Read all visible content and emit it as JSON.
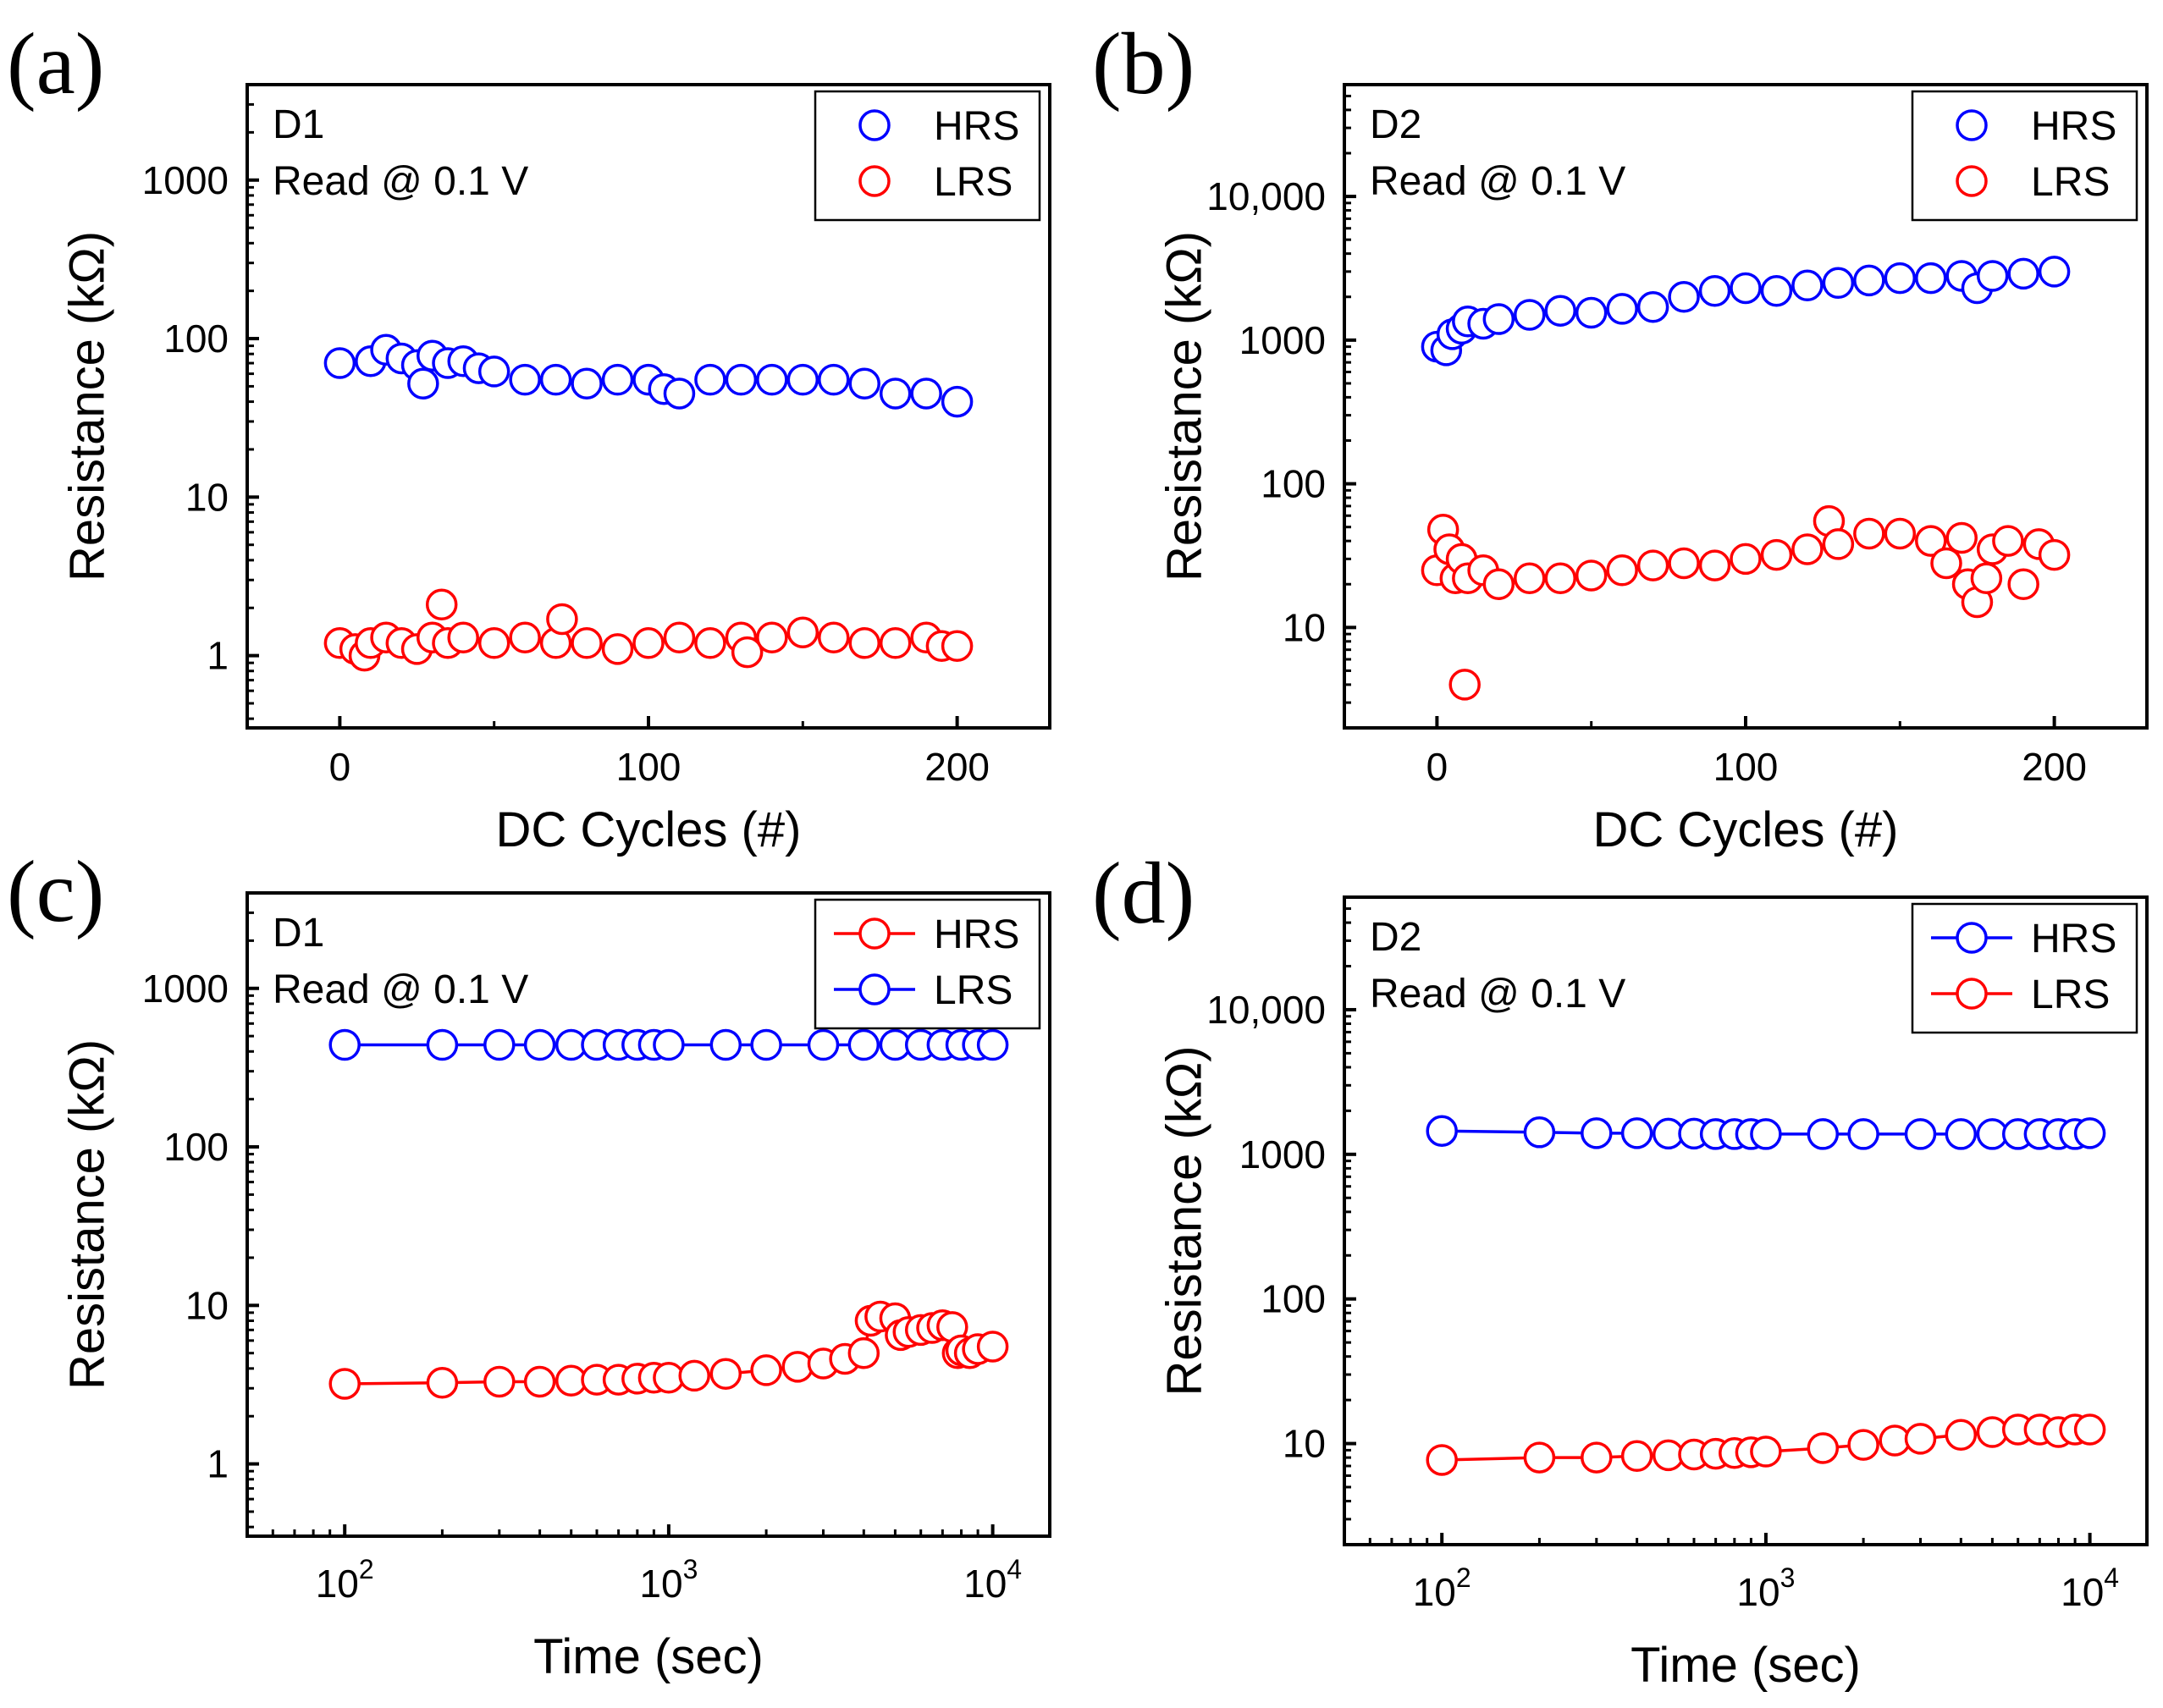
{
  "colors": {
    "blue": "#0000ff",
    "red": "#ff0000",
    "axis": "#000000"
  },
  "chart_data": [
    {
      "id": "a",
      "type": "scatter",
      "panel_label": "(a)",
      "annotation_line1": "D1",
      "annotation_line2": "Read @ 0.1 V",
      "xlabel": "DC Cycles (#)",
      "ylabel": "Resistance (kΩ)",
      "xscale": "linear",
      "yscale": "log",
      "xlim": [
        -30,
        230
      ],
      "ylim": [
        0.35,
        4000
      ],
      "xticks": [
        0,
        100,
        200
      ],
      "xtick_labels": [
        "0",
        "100",
        "200"
      ],
      "yticks": [
        1,
        10,
        100,
        1000
      ],
      "ytick_labels": [
        "1",
        "10",
        "100",
        "1000"
      ],
      "legend_position": "top-right",
      "legend_style": "markers",
      "series": [
        {
          "name": "HRS",
          "color": "blue",
          "x": [
            0,
            10,
            15,
            20,
            25,
            27,
            30,
            35,
            40,
            45,
            50,
            60,
            70,
            80,
            90,
            100,
            105,
            110,
            120,
            130,
            140,
            150,
            160,
            170,
            180,
            190,
            200
          ],
          "y": [
            70,
            72,
            85,
            75,
            68,
            52,
            78,
            70,
            72,
            65,
            62,
            55,
            55,
            52,
            55,
            55,
            48,
            45,
            55,
            55,
            55,
            55,
            55,
            52,
            45,
            45,
            40
          ]
        },
        {
          "name": "LRS",
          "color": "red",
          "x": [
            0,
            5,
            8,
            10,
            15,
            20,
            25,
            30,
            33,
            35,
            40,
            50,
            60,
            70,
            72,
            80,
            90,
            100,
            110,
            120,
            130,
            132,
            140,
            150,
            160,
            170,
            180,
            190,
            195,
            200
          ],
          "y": [
            1.2,
            1.1,
            1.0,
            1.2,
            1.3,
            1.2,
            1.1,
            1.3,
            2.1,
            1.2,
            1.3,
            1.2,
            1.3,
            1.2,
            1.7,
            1.2,
            1.1,
            1.2,
            1.3,
            1.2,
            1.3,
            1.05,
            1.3,
            1.4,
            1.3,
            1.2,
            1.2,
            1.3,
            1.15,
            1.15
          ]
        }
      ]
    },
    {
      "id": "b",
      "type": "scatter",
      "panel_label": "(b)",
      "annotation_line1": "D2",
      "annotation_line2": "Read @ 0.1 V",
      "xlabel": "DC Cycles (#)",
      "ylabel": "Resistance (kΩ)",
      "xscale": "linear",
      "yscale": "log",
      "xlim": [
        -30,
        230
      ],
      "ylim": [
        2,
        60000
      ],
      "xticks": [
        0,
        100,
        200
      ],
      "xtick_labels": [
        "0",
        "100",
        "200"
      ],
      "yticks": [
        10,
        100,
        1000,
        10000
      ],
      "ytick_labels": [
        "10",
        "100",
        "1000",
        "10,000"
      ],
      "legend_position": "top-right",
      "legend_style": "markers",
      "series": [
        {
          "name": "HRS",
          "color": "blue",
          "x": [
            0,
            3,
            5,
            8,
            10,
            15,
            20,
            30,
            40,
            50,
            60,
            70,
            80,
            90,
            100,
            110,
            120,
            130,
            140,
            150,
            160,
            170,
            175,
            180,
            190,
            200
          ],
          "y": [
            900,
            850,
            1100,
            1200,
            1350,
            1300,
            1400,
            1500,
            1600,
            1550,
            1650,
            1700,
            2000,
            2200,
            2300,
            2200,
            2400,
            2500,
            2600,
            2700,
            2700,
            2800,
            2300,
            2800,
            2900,
            3000
          ]
        },
        {
          "name": "LRS",
          "color": "red",
          "x": [
            0,
            2,
            4,
            6,
            8,
            9,
            10,
            15,
            20,
            30,
            40,
            50,
            60,
            70,
            80,
            90,
            100,
            110,
            120,
            127,
            130,
            140,
            150,
            160,
            165,
            170,
            172,
            175,
            178,
            180,
            185,
            190,
            195,
            200
          ],
          "y": [
            25,
            48,
            35,
            22,
            30,
            4,
            22,
            25,
            20,
            22,
            22,
            23,
            25,
            27,
            28,
            27,
            30,
            32,
            35,
            55,
            38,
            45,
            45,
            40,
            28,
            42,
            20,
            15,
            22,
            35,
            40,
            20,
            38,
            32
          ]
        }
      ]
    },
    {
      "id": "c",
      "type": "line",
      "panel_label": "(c)",
      "annotation_line1": "D1",
      "annotation_line2": "Read @ 0.1 V",
      "xlabel": "Time (sec)",
      "ylabel": "Resistance (kΩ)",
      "xscale": "log",
      "yscale": "log",
      "xlim": [
        50,
        15000
      ],
      "ylim": [
        0.35,
        4000
      ],
      "xticks": [
        100,
        1000,
        10000
      ],
      "xtick_base": "10",
      "xtick_exponents": [
        "2",
        "3",
        "4"
      ],
      "yticks": [
        1,
        10,
        100,
        1000
      ],
      "ytick_labels": [
        "1",
        "10",
        "100",
        "1000"
      ],
      "legend_position": "top-right",
      "legend_style": "line-markers",
      "series": [
        {
          "name": "HRS",
          "color": "red",
          "x": [
            100,
            200,
            300,
            400,
            500,
            600,
            700,
            800,
            900,
            1000,
            1200,
            1500,
            2000,
            2500,
            3000,
            3500,
            4000,
            4200,
            4500,
            5000,
            5200,
            5500,
            6000,
            6500,
            7000,
            7500,
            7800,
            8000,
            8500,
            9000,
            10000
          ],
          "y": [
            3.2,
            3.25,
            3.3,
            3.3,
            3.35,
            3.4,
            3.4,
            3.45,
            3.5,
            3.5,
            3.6,
            3.7,
            3.9,
            4.1,
            4.3,
            4.6,
            5.0,
            8.0,
            8.5,
            8.3,
            6.5,
            6.8,
            7.0,
            7.2,
            7.5,
            7.3,
            5.0,
            5.2,
            5.0,
            5.3,
            5.5
          ]
        },
        {
          "name": "LRS",
          "color": "blue",
          "x": [
            100,
            200,
            300,
            400,
            500,
            600,
            700,
            800,
            900,
            1000,
            1500,
            2000,
            3000,
            4000,
            5000,
            6000,
            7000,
            8000,
            9000,
            10000
          ],
          "y": [
            440,
            440,
            440,
            440,
            440,
            440,
            440,
            440,
            440,
            440,
            440,
            440,
            440,
            440,
            440,
            440,
            440,
            440,
            440,
            440
          ]
        }
      ]
    },
    {
      "id": "d",
      "type": "line",
      "panel_label": "(d)",
      "annotation_line1": "D2",
      "annotation_line2": "Read @ 0.1 V",
      "xlabel": "Time (sec)",
      "ylabel": "Resistance (kΩ)",
      "xscale": "log",
      "yscale": "log",
      "xlim": [
        50,
        15000
      ],
      "ylim": [
        2,
        60000
      ],
      "xticks": [
        100,
        1000,
        10000
      ],
      "xtick_base": "10",
      "xtick_exponents": [
        "2",
        "3",
        "4"
      ],
      "yticks": [
        10,
        100,
        1000,
        10000
      ],
      "ytick_labels": [
        "10",
        "100",
        "1000",
        "10,000"
      ],
      "legend_position": "top-right",
      "legend_style": "line-markers",
      "series": [
        {
          "name": "HRS",
          "color": "blue",
          "x": [
            100,
            200,
            300,
            400,
            500,
            600,
            700,
            800,
            900,
            1000,
            1500,
            2000,
            3000,
            4000,
            5000,
            6000,
            7000,
            8000,
            9000,
            10000
          ],
          "y": [
            1450,
            1420,
            1400,
            1400,
            1390,
            1390,
            1380,
            1380,
            1380,
            1380,
            1380,
            1380,
            1380,
            1380,
            1380,
            1380,
            1380,
            1380,
            1380,
            1400
          ]
        },
        {
          "name": "LRS",
          "color": "red",
          "x": [
            100,
            200,
            300,
            400,
            500,
            600,
            700,
            800,
            900,
            1000,
            1500,
            2000,
            2500,
            3000,
            4000,
            5000,
            6000,
            7000,
            8000,
            9000,
            10000
          ],
          "y": [
            7.7,
            8.0,
            8.0,
            8.2,
            8.3,
            8.4,
            8.5,
            8.6,
            8.7,
            8.8,
            9.3,
            9.8,
            10.5,
            10.8,
            11.5,
            12.0,
            12.5,
            12.5,
            12.0,
            12.5,
            12.5
          ]
        }
      ]
    }
  ]
}
